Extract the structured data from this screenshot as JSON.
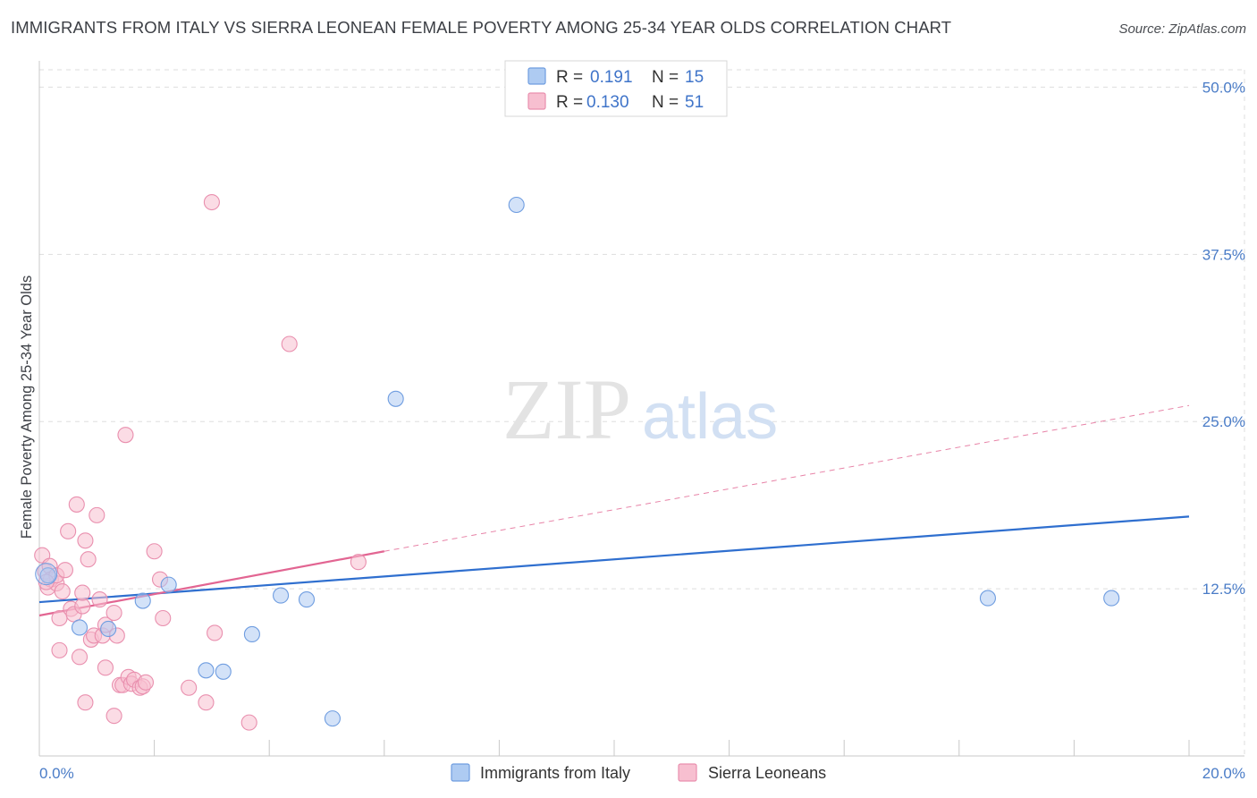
{
  "header": {
    "title": "IMMIGRANTS FROM ITALY VS SIERRA LEONEAN FEMALE POVERTY AMONG 25-34 YEAR OLDS CORRELATION CHART",
    "source": "Source: ZipAtlas.com"
  },
  "watermark": {
    "zip": "ZIP",
    "atlas": "atlas"
  },
  "colors": {
    "blue_fill": "#aecbf2",
    "blue_stroke": "#6f9de0",
    "blue_line": "#2f6fcf",
    "pink_fill": "#f7bfd0",
    "pink_stroke": "#e98fae",
    "pink_line": "#e26592",
    "tick_text": "#4a7cc7",
    "grid": "#dddddd"
  },
  "chart_data": {
    "type": "scatter",
    "title": "IMMIGRANTS FROM ITALY VS SIERRA LEONEAN FEMALE POVERTY AMONG 25-34 YEAR OLDS CORRELATION CHART",
    "xlabel": "",
    "ylabel": "Female Poverty Among 25-34 Year Olds",
    "xlim": [
      0,
      20
    ],
    "ylim": [
      0,
      52.5
    ],
    "x_tick_labels": [
      "0.0%",
      "20.0%"
    ],
    "y_ticks": [
      12.5,
      25.0,
      37.5,
      50.0
    ],
    "y_tick_labels": [
      "12.5%",
      "25.0%",
      "37.5%",
      "50.0%"
    ],
    "grid": true,
    "legend": {
      "position": "top-center",
      "entries": [
        {
          "r_label": "R =",
          "r_value": "0.191",
          "n_label": "N =",
          "n_value": "15"
        },
        {
          "r_label": "R =",
          "r_value": "0.130",
          "n_label": "N =",
          "n_value": "51"
        }
      ]
    },
    "series": [
      {
        "name": "Immigrants from Italy",
        "color": "#aecbf2",
        "points": [
          [
            0.15,
            13.5
          ],
          [
            0.7,
            9.6
          ],
          [
            1.2,
            9.5
          ],
          [
            1.8,
            11.6
          ],
          [
            2.25,
            12.8
          ],
          [
            2.9,
            6.4
          ],
          [
            3.2,
            6.3
          ],
          [
            3.7,
            9.1
          ],
          [
            4.2,
            12.0
          ],
          [
            4.65,
            11.7
          ],
          [
            5.1,
            2.8
          ],
          [
            6.2,
            26.7
          ],
          [
            8.3,
            41.2
          ],
          [
            16.5,
            11.8
          ],
          [
            18.65,
            11.8
          ]
        ],
        "trend": {
          "x": [
            0,
            20
          ],
          "y": [
            11.5,
            17.9
          ],
          "style": "solid"
        }
      },
      {
        "name": "Sierra Leoneans",
        "color": "#f7bfd0",
        "points": [
          [
            0.05,
            15.0
          ],
          [
            0.1,
            13.8
          ],
          [
            0.15,
            12.6
          ],
          [
            0.18,
            14.2
          ],
          [
            0.2,
            13.2
          ],
          [
            0.3,
            12.9
          ],
          [
            0.3,
            13.5
          ],
          [
            0.35,
            10.3
          ],
          [
            0.35,
            7.9
          ],
          [
            0.4,
            12.3
          ],
          [
            0.45,
            13.9
          ],
          [
            0.5,
            16.8
          ],
          [
            0.55,
            11.0
          ],
          [
            0.6,
            10.6
          ],
          [
            0.65,
            18.8
          ],
          [
            0.7,
            7.4
          ],
          [
            0.75,
            11.2
          ],
          [
            0.75,
            12.2
          ],
          [
            0.8,
            4.0
          ],
          [
            0.8,
            16.1
          ],
          [
            0.85,
            14.7
          ],
          [
            0.9,
            8.7
          ],
          [
            0.95,
            9.0
          ],
          [
            1.0,
            18.0
          ],
          [
            1.05,
            11.7
          ],
          [
            1.1,
            9.0
          ],
          [
            1.15,
            9.8
          ],
          [
            1.15,
            6.6
          ],
          [
            1.3,
            10.7
          ],
          [
            1.3,
            3.0
          ],
          [
            1.35,
            9.0
          ],
          [
            1.4,
            5.3
          ],
          [
            1.45,
            5.3
          ],
          [
            1.5,
            24.0
          ],
          [
            1.55,
            5.9
          ],
          [
            1.6,
            5.4
          ],
          [
            1.65,
            5.7
          ],
          [
            1.75,
            5.1
          ],
          [
            1.8,
            5.2
          ],
          [
            1.85,
            5.5
          ],
          [
            2.0,
            15.3
          ],
          [
            2.1,
            13.2
          ],
          [
            2.15,
            10.3
          ],
          [
            2.6,
            5.1
          ],
          [
            2.9,
            4.0
          ],
          [
            3.0,
            41.4
          ],
          [
            3.05,
            9.2
          ],
          [
            3.65,
            2.5
          ],
          [
            4.35,
            30.8
          ],
          [
            5.55,
            14.5
          ],
          [
            0.12,
            13.0
          ]
        ],
        "trend": {
          "x": [
            0,
            6
          ],
          "y": [
            10.5,
            15.3
          ],
          "style": "solid",
          "extended": {
            "x": [
              6,
              20
            ],
            "y": [
              15.3,
              26.2
            ],
            "style": "dashed"
          }
        }
      }
    ]
  },
  "bottom_legend": [
    {
      "label": "Immigrants from Italy",
      "color": "#aecbf2"
    },
    {
      "label": "Sierra Leoneans",
      "color": "#f7bfd0"
    }
  ]
}
